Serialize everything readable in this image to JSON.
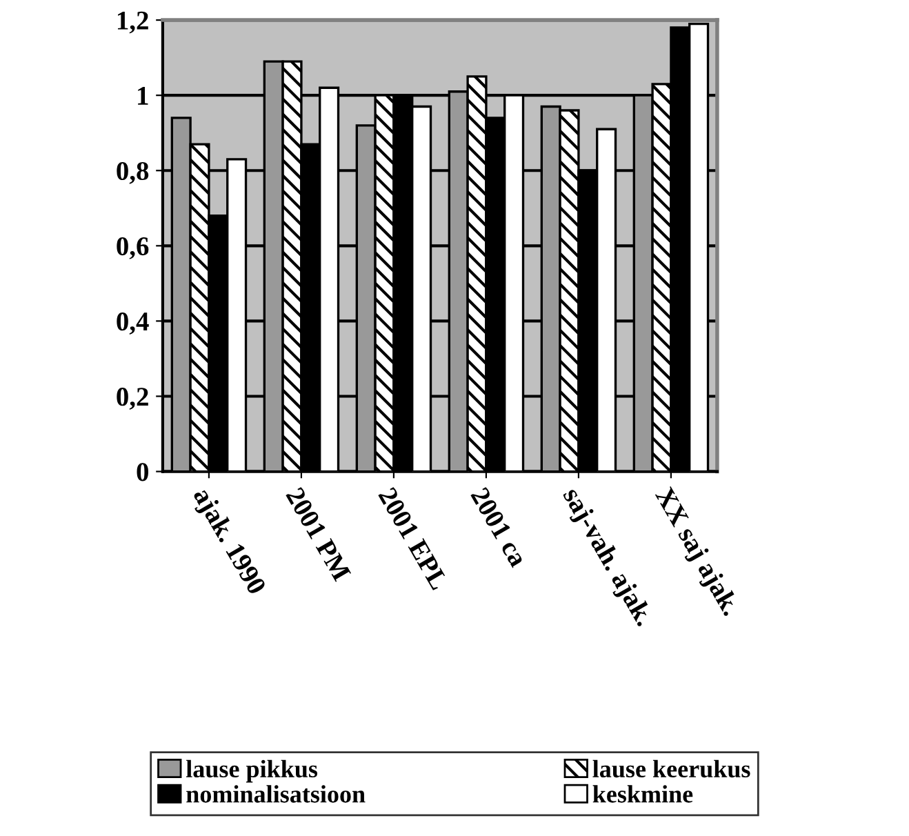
{
  "chart_data": {
    "type": "bar",
    "categories": [
      "ajak. 1990",
      "2001 PM",
      "2001 EPL",
      "2001 ca",
      "saj-vah. ajak.",
      "XX saj ajak."
    ],
    "series": [
      {
        "name": "lause pikkus",
        "color": "#999999",
        "values": [
          0.94,
          1.09,
          0.92,
          1.01,
          0.97,
          1.0
        ]
      },
      {
        "name": "lause keerukus",
        "color": "#000000",
        "values": [
          0.87,
          1.09,
          1.0,
          1.05,
          0.96,
          1.03
        ]
      },
      {
        "name": "nominalisatsioon",
        "color": "#000000",
        "values": [
          0.68,
          0.87,
          1.0,
          0.94,
          0.8,
          1.18
        ]
      },
      {
        "name": "keskmine",
        "color": "#ffffff",
        "values": [
          0.83,
          1.02,
          0.97,
          1.0,
          0.91,
          1.19
        ]
      }
    ],
    "ylim": [
      0,
      1.2
    ],
    "yticks": [
      0,
      {
        "value": 0.2,
        "label": "0,2"
      },
      {
        "value": 0.4,
        "label": "0,4"
      },
      {
        "value": 0.6,
        "label": "0,6"
      },
      {
        "value": 0.8,
        "label": "0,8"
      },
      1,
      {
        "value": 1.2,
        "label": "1,2"
      }
    ],
    "grid": "y",
    "legend": "bottom"
  }
}
